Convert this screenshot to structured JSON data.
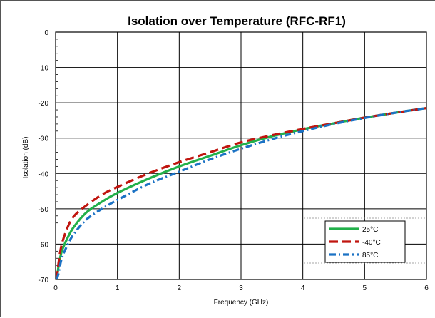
{
  "chart_data": {
    "type": "line",
    "title": "Isolation  over Temperature (RFC-RF1)",
    "xlabel": "Frequency  (GHz)",
    "ylabel": "Isolation (dB)",
    "xlim": [
      0,
      6
    ],
    "ylim": [
      -70,
      0
    ],
    "x_ticks": [
      0,
      1,
      2,
      3,
      4,
      5,
      6
    ],
    "y_ticks": [
      0,
      -10,
      -20,
      -30,
      -40,
      -50,
      -60,
      -70
    ],
    "x_tick_labels": [
      "0",
      "1",
      "2",
      "3",
      "4",
      "5",
      "6"
    ],
    "y_tick_labels": [
      "0",
      "-10",
      "-20",
      "-30",
      "-40",
      "-50",
      "-60",
      "-70"
    ],
    "grid": true,
    "legend_position": "bottom-right",
    "x": [
      0.02,
      0.05,
      0.1,
      0.2,
      0.3,
      0.5,
      0.75,
      1.0,
      1.5,
      2.0,
      2.5,
      3.0,
      3.5,
      4.0,
      4.5,
      5.0,
      5.5,
      6.0
    ],
    "series": [
      {
        "name": "25°C",
        "color": "#22b04a",
        "style": "solid",
        "values": [
          -70,
          -66,
          -62,
          -58,
          -55,
          -51,
          -48,
          -45.5,
          -41.5,
          -38,
          -35,
          -32,
          -29.5,
          -27.5,
          -25.8,
          -24.2,
          -22.8,
          -21.5
        ]
      },
      {
        "name": "-40°C",
        "color": "#c0150f",
        "style": "dashed",
        "values": [
          -70,
          -65,
          -60,
          -55,
          -52,
          -49,
          -46,
          -43.8,
          -40,
          -36.8,
          -34,
          -31.2,
          -29.2,
          -27.4,
          -25.8,
          -24.2,
          -22.8,
          -21.5
        ]
      },
      {
        "name": "85°C",
        "color": "#1b72c4",
        "style": "dotted-dash",
        "values": [
          -70,
          -68,
          -64,
          -60,
          -57,
          -53,
          -50,
          -47.5,
          -43,
          -39.5,
          -36,
          -33,
          -30.3,
          -28,
          -26,
          -24.3,
          -22.8,
          -21.5
        ]
      }
    ]
  }
}
